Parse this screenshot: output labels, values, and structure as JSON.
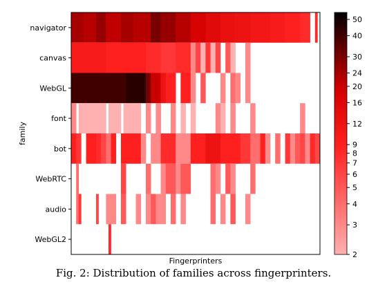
{
  "chart_data": {
    "type": "heatmap",
    "title": "",
    "xlabel": "Fingerprinters",
    "ylabel": "family",
    "rows": [
      "navigator",
      "canvas",
      "WebGL",
      "font",
      "bot",
      "WebRTC",
      "audio",
      "WebGL2"
    ],
    "x_tick_labels": [],
    "colorbar": {
      "scale": "log",
      "range": [
        2,
        55
      ],
      "ticks": [
        2,
        3,
        4,
        5,
        6,
        7,
        8,
        9,
        12,
        16,
        20,
        24,
        30,
        40,
        50
      ],
      "colors": [
        "#ffb0b0",
        "#ff2020",
        "#d40000",
        "#000000"
      ]
    },
    "n_fingerprinters": 100,
    "segments": {
      "navigator": [
        [
          0,
          5,
          24
        ],
        [
          5,
          10,
          22
        ],
        [
          10,
          14,
          26
        ],
        [
          14,
          20,
          21
        ],
        [
          20,
          25,
          24
        ],
        [
          25,
          32,
          22
        ],
        [
          32,
          36,
          30
        ],
        [
          36,
          42,
          26
        ],
        [
          42,
          48,
          22
        ],
        [
          48,
          54,
          18
        ],
        [
          54,
          60,
          15
        ],
        [
          60,
          66,
          13
        ],
        [
          66,
          72,
          12
        ],
        [
          72,
          80,
          11
        ],
        [
          80,
          86,
          10
        ],
        [
          86,
          92,
          9
        ],
        [
          92,
          96,
          8
        ],
        [
          96,
          98,
          0
        ],
        [
          98,
          99,
          8
        ]
      ],
      "canvas": [
        [
          0,
          14,
          10
        ],
        [
          14,
          22,
          9
        ],
        [
          22,
          30,
          9
        ],
        [
          30,
          36,
          8
        ],
        [
          36,
          42,
          7
        ],
        [
          42,
          48,
          8
        ],
        [
          48,
          50,
          3
        ],
        [
          50,
          52,
          6
        ],
        [
          52,
          54,
          2
        ],
        [
          54,
          56,
          7
        ],
        [
          56,
          58,
          2
        ],
        [
          58,
          60,
          6
        ],
        [
          60,
          62,
          0
        ],
        [
          62,
          64,
          5
        ],
        [
          64,
          66,
          2
        ],
        [
          66,
          70,
          0
        ],
        [
          70,
          72,
          3
        ],
        [
          72,
          100,
          0
        ]
      ],
      "WebGL": [
        [
          0,
          22,
          40
        ],
        [
          22,
          30,
          45
        ],
        [
          30,
          32,
          30
        ],
        [
          32,
          36,
          20
        ],
        [
          36,
          38,
          12
        ],
        [
          38,
          42,
          9
        ],
        [
          42,
          44,
          0
        ],
        [
          44,
          48,
          9
        ],
        [
          48,
          50,
          3
        ],
        [
          50,
          52,
          0
        ],
        [
          52,
          54,
          5
        ],
        [
          54,
          60,
          0
        ],
        [
          60,
          62,
          3
        ],
        [
          62,
          64,
          0
        ],
        [
          64,
          66,
          4
        ],
        [
          66,
          68,
          3
        ],
        [
          68,
          70,
          0
        ],
        [
          70,
          72,
          3
        ],
        [
          72,
          100,
          0
        ]
      ],
      "font": [
        [
          0,
          2,
          3
        ],
        [
          2,
          3,
          0
        ],
        [
          3,
          14,
          2
        ],
        [
          14,
          15,
          0
        ],
        [
          15,
          20,
          2
        ],
        [
          20,
          21,
          0
        ],
        [
          21,
          28,
          2
        ],
        [
          28,
          30,
          0
        ],
        [
          30,
          32,
          3
        ],
        [
          32,
          34,
          0
        ],
        [
          34,
          36,
          3
        ],
        [
          36,
          40,
          0
        ],
        [
          40,
          42,
          3
        ],
        [
          42,
          44,
          0
        ],
        [
          44,
          46,
          2
        ],
        [
          46,
          48,
          0
        ],
        [
          48,
          50,
          2
        ],
        [
          50,
          58,
          0
        ],
        [
          58,
          60,
          3
        ],
        [
          60,
          62,
          2
        ],
        [
          62,
          64,
          0
        ],
        [
          64,
          66,
          3
        ],
        [
          66,
          72,
          0
        ],
        [
          72,
          74,
          3
        ],
        [
          74,
          92,
          0
        ],
        [
          92,
          94,
          3
        ],
        [
          94,
          100,
          0
        ]
      ],
      "bot": [
        [
          0,
          2,
          9
        ],
        [
          2,
          4,
          7
        ],
        [
          4,
          6,
          0
        ],
        [
          6,
          10,
          9
        ],
        [
          10,
          12,
          8
        ],
        [
          12,
          14,
          6
        ],
        [
          14,
          16,
          4
        ],
        [
          16,
          18,
          9
        ],
        [
          18,
          20,
          0
        ],
        [
          20,
          28,
          9
        ],
        [
          28,
          30,
          3
        ],
        [
          30,
          32,
          0
        ],
        [
          32,
          36,
          3
        ],
        [
          36,
          42,
          8
        ],
        [
          42,
          48,
          3
        ],
        [
          48,
          54,
          9
        ],
        [
          54,
          60,
          12
        ],
        [
          60,
          68,
          9
        ],
        [
          68,
          72,
          7
        ],
        [
          72,
          76,
          4
        ],
        [
          76,
          78,
          9
        ],
        [
          78,
          80,
          3
        ],
        [
          80,
          82,
          0
        ],
        [
          82,
          84,
          4
        ],
        [
          84,
          86,
          0
        ],
        [
          86,
          88,
          7
        ],
        [
          88,
          90,
          3
        ],
        [
          90,
          92,
          5
        ],
        [
          92,
          94,
          6
        ],
        [
          94,
          96,
          3
        ],
        [
          96,
          98,
          8
        ],
        [
          98,
          100,
          6
        ]
      ],
      "WebRTC": [
        [
          0,
          2,
          0
        ],
        [
          2,
          3,
          4
        ],
        [
          3,
          20,
          0
        ],
        [
          20,
          22,
          6
        ],
        [
          22,
          30,
          0
        ],
        [
          30,
          32,
          4
        ],
        [
          32,
          36,
          0
        ],
        [
          36,
          38,
          3
        ],
        [
          38,
          42,
          5
        ],
        [
          42,
          44,
          3
        ],
        [
          44,
          48,
          5
        ],
        [
          48,
          56,
          0
        ],
        [
          56,
          58,
          4
        ],
        [
          58,
          60,
          3
        ],
        [
          60,
          62,
          0
        ],
        [
          62,
          64,
          5
        ],
        [
          64,
          66,
          3
        ],
        [
          66,
          72,
          0
        ],
        [
          72,
          74,
          4
        ],
        [
          74,
          100,
          0
        ]
      ],
      "audio": [
        [
          0,
          2,
          0
        ],
        [
          2,
          3,
          4
        ],
        [
          3,
          4,
          7
        ],
        [
          4,
          10,
          0
        ],
        [
          10,
          11,
          6
        ],
        [
          11,
          14,
          0
        ],
        [
          14,
          18,
          3
        ],
        [
          18,
          20,
          0
        ],
        [
          20,
          22,
          5
        ],
        [
          22,
          26,
          0
        ],
        [
          26,
          28,
          3
        ],
        [
          28,
          30,
          0
        ],
        [
          30,
          32,
          3
        ],
        [
          32,
          34,
          5
        ],
        [
          34,
          36,
          3
        ],
        [
          36,
          38,
          3
        ],
        [
          38,
          40,
          0
        ],
        [
          40,
          42,
          4
        ],
        [
          42,
          44,
          0
        ],
        [
          44,
          46,
          3
        ],
        [
          46,
          56,
          0
        ],
        [
          56,
          58,
          4
        ],
        [
          58,
          60,
          0
        ],
        [
          60,
          62,
          3
        ],
        [
          62,
          64,
          0
        ],
        [
          64,
          66,
          5
        ],
        [
          66,
          70,
          0
        ],
        [
          70,
          72,
          3
        ],
        [
          72,
          100,
          0
        ]
      ],
      "WebGL2": [
        [
          0,
          15,
          0
        ],
        [
          15,
          16,
          8
        ],
        [
          16,
          100,
          0
        ]
      ]
    }
  },
  "caption": "Fig. 2: Distribution of families across fingerprinters."
}
